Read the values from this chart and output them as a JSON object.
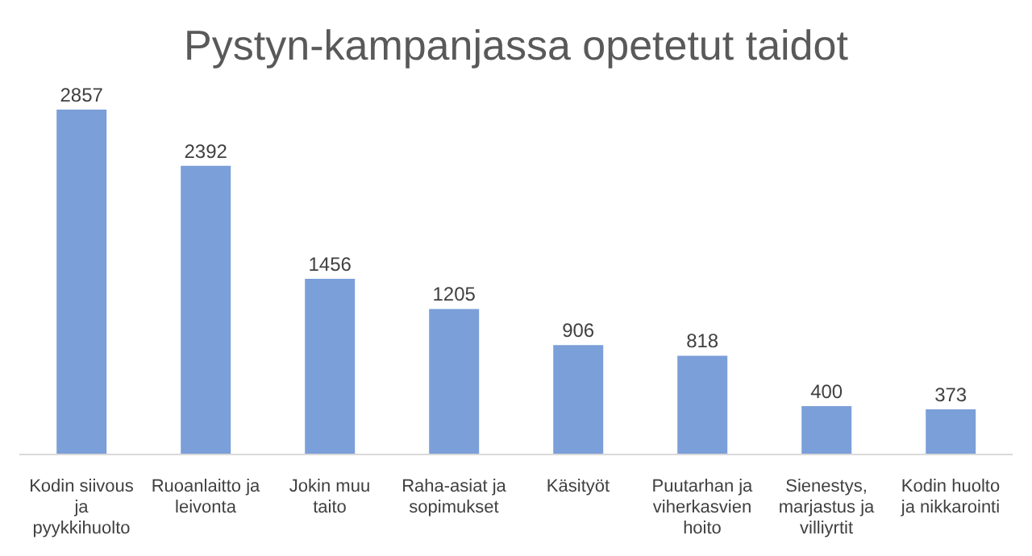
{
  "chart_data": {
    "type": "bar",
    "title": "Pystyn-kampanjassa opetetut taidot",
    "categories": [
      "Kodin siivous ja pyykkihuolto",
      "Ruoanlaitto ja leivonta",
      "Jokin muu taito",
      "Raha-asiat ja sopimukset",
      "Käsityöt",
      "Puutarhan ja viherkasvien hoito",
      "Sienestys, marjastus ja villiyrtit",
      "Kodin huolto ja nikkarointi"
    ],
    "values": [
      2857,
      2392,
      1456,
      1205,
      906,
      818,
      400,
      373
    ],
    "color": "#7b9fd8",
    "data_labels": true,
    "relative": false,
    "grid": false,
    "legend": false
  }
}
